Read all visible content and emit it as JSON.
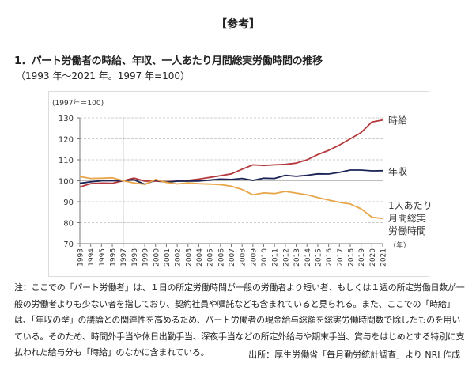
{
  "heading": "【参考】",
  "section_title": "1．パート労働者の時給、年収、一人あたり月間総実労働時間の推移",
  "subtitle": "（1993 年～2021 年。1997 年=100）",
  "note_lines": [
    "注：ここでの「パート労働者」は、１日の所定労働時間が一般の労働者より短い者、もしくは１週の所定労働日数が一",
    "般の労働者よりも少ない者を指しており、契約社員や嘱託なども含まれていると見られる。また、ここでの「時給」",
    "は、「年収の壁」の議論との関連性を高めるため、パート労働者の現金給与総額を総実労働時間数で除したものを用い",
    "ている。そのため、時間外手当や休日出勤手当、深夜手当などの所定外給与や期末手当、賞与をはじめとする特別に支",
    "払われた給与分も「時給」のなかに含まれている。"
  ],
  "source": "出所：厚生労働省「毎月勤労統計調査」より NRI 作成",
  "chart_data": {
    "type": "line",
    "title": "",
    "ylabel": "(1997年＝100)",
    "xlabel": "（年）",
    "ylim": [
      70,
      130
    ],
    "yticks": [
      "70",
      "80",
      "90",
      "100",
      "110",
      "120",
      "130"
    ],
    "grid": true,
    "reference_year": "1997",
    "x": [
      "1993",
      "1994",
      "1995",
      "1996",
      "1997",
      "1998",
      "1999",
      "2000",
      "2001",
      "2002",
      "2003",
      "2004",
      "2005",
      "2006",
      "2007",
      "2008",
      "2009",
      "2010",
      "2011",
      "2012",
      "2013",
      "2014",
      "2015",
      "2016",
      "2017",
      "2018",
      "2019",
      "2020",
      "2021"
    ],
    "series": [
      {
        "name": "時給",
        "color": "#b5393c",
        "label_lines": [
          "時給"
        ],
        "values": [
          97,
          98.6,
          98.9,
          98.8,
          100,
          101.3,
          99.8,
          99.9,
          99.5,
          99.8,
          100.2,
          100.8,
          101.6,
          102.4,
          103.3,
          105.5,
          107.6,
          107.3,
          107.6,
          107.8,
          108.4,
          110,
          112.5,
          114.5,
          117,
          120,
          123,
          128,
          129
        ]
      },
      {
        "name": "年収",
        "color": "#1c2456",
        "label_lines": [
          "年収"
        ],
        "values": [
          98.8,
          99.5,
          100,
          100,
          100,
          100.5,
          98.3,
          100.3,
          99.3,
          99.8,
          99.8,
          99.9,
          100.3,
          100.8,
          100.6,
          101.1,
          100.2,
          101.2,
          101.1,
          102.6,
          102.1,
          102.6,
          103.3,
          103.2,
          104,
          105.1,
          105.1,
          104.7,
          104.8
        ]
      },
      {
        "name": "1人あたり月間総実労働時間",
        "color": "#e8a64a",
        "label_lines": [
          "1人あたり",
          "月間総実",
          "労働時間"
        ],
        "values": [
          102,
          101.1,
          101.2,
          101.4,
          100,
          99,
          98.3,
          100.6,
          99.2,
          98.5,
          99,
          98.6,
          98.4,
          98.2,
          97.4,
          95.8,
          93.3,
          94.2,
          93.9,
          94.9,
          94.1,
          93.3,
          92,
          90.8,
          89.7,
          88.9,
          86.6,
          82.6,
          82
        ]
      }
    ]
  }
}
